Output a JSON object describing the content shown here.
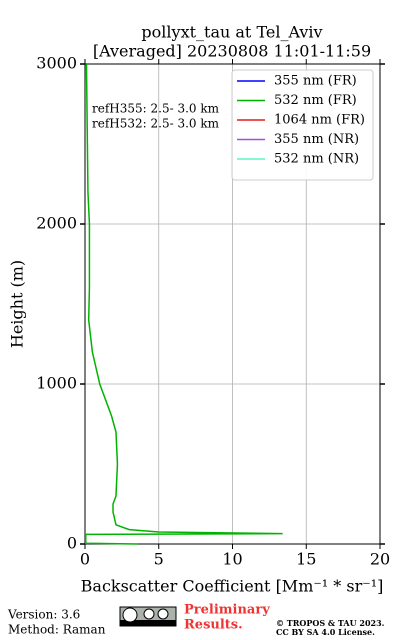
{
  "chart_data": {
    "type": "profile",
    "title": "pollyxt_tau at Tel_Aviv",
    "subtitle": "[Averaged] 20230808 11:01-11:59",
    "x_label": "Backscatter Coefficient [Mm⁻¹ * sr⁻¹]",
    "y_label": "Height (m)",
    "heights": [
      0,
      5,
      60,
      65,
      75,
      90,
      120,
      200,
      250,
      300,
      500,
      700,
      800,
      1000,
      1200,
      1400,
      1600,
      2000,
      2200,
      2600,
      3000
    ],
    "series": [
      {
        "name": "355 nm (FR)",
        "color": "#0000ff",
        "values": [
          null,
          null,
          null,
          null,
          null,
          null,
          null,
          null,
          null,
          null,
          null,
          null,
          null,
          null,
          null,
          null,
          null,
          null,
          null,
          null,
          null
        ]
      },
      {
        "name": "532 nm (FR)",
        "color": "#00b300",
        "values": [
          3.6,
          0.05,
          0.05,
          13.4,
          5,
          3,
          2.1,
          1.9,
          1.9,
          2.1,
          2.2,
          2.1,
          1.8,
          1.0,
          0.5,
          0.25,
          0.3,
          0.3,
          0.2,
          0.15,
          0.1
        ]
      },
      {
        "name": "1064 nm (FR)",
        "color": "#e31a1c",
        "values": [
          null,
          null,
          null,
          null,
          null,
          null,
          null,
          null,
          null,
          null,
          null,
          null,
          null,
          null,
          null,
          null,
          null,
          null,
          null,
          null,
          null
        ]
      },
      {
        "name": "355 nm (NR)",
        "color": "#a64ddb",
        "values": [
          null,
          null,
          null,
          null,
          null,
          null,
          null,
          null,
          null,
          null,
          null,
          null,
          null,
          null,
          null,
          null,
          null,
          null,
          null,
          null,
          null
        ]
      },
      {
        "name": "532 nm (NR)",
        "color": "#5ef5c8",
        "values": [
          null,
          null,
          null,
          null,
          null,
          null,
          null,
          null,
          null,
          null,
          null,
          null,
          null,
          null,
          null,
          null,
          null,
          null,
          null,
          null,
          null
        ]
      }
    ],
    "xlim": [
      0,
      20
    ],
    "xticks": [
      0,
      5,
      10,
      15,
      20
    ],
    "ylim": [
      0,
      3000
    ],
    "yticks": [
      0,
      1000,
      2000,
      3000
    ],
    "grid": true,
    "legend": "upper right",
    "annotations": [
      "refH355:  2.5- 3.0 km",
      "refH532:  2.5- 3.0 km"
    ],
    "footer": {
      "version": "Version: 3.6",
      "method": "Method: Raman",
      "preliminary": [
        "Preliminary",
        "Results."
      ],
      "copyright": [
        "© TROPOS & TAU 2023.",
        "CC BY SA 4.0 License."
      ]
    }
  }
}
